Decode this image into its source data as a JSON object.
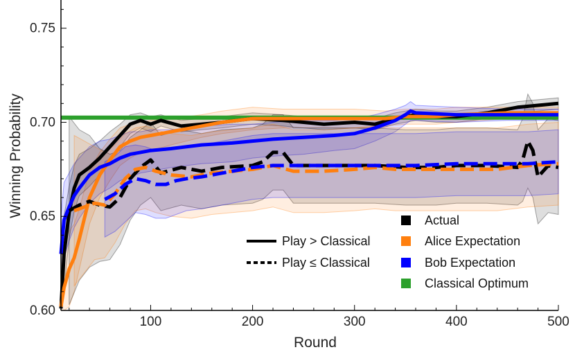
{
  "chart_data": {
    "type": "line",
    "xlabel": "Round",
    "ylabel": "Winning Probability",
    "xlim": [
      12,
      500
    ],
    "ylim": [
      0.6,
      0.765
    ],
    "xticks": [
      100,
      200,
      300,
      400,
      500
    ],
    "yticks": [
      0.6,
      0.65,
      0.7,
      0.75
    ],
    "ytick_labels": [
      "0.60",
      "0.65",
      "0.70",
      "0.75"
    ],
    "legend_placement": "bottom-right",
    "grid": false,
    "legend": {
      "markers": [
        {
          "label": "Actual",
          "color": "#000000"
        },
        {
          "label": "Alice Expectation",
          "color": "#ff7f0e"
        },
        {
          "label": "Bob Expectation",
          "color": "#0000ff"
        },
        {
          "label": "Classical Optimum",
          "color": "#2ca02c"
        }
      ],
      "linestyles": [
        {
          "label": "Play > Classical",
          "style": "solid"
        },
        {
          "label": "Play ≤ Classical",
          "style": "dotted"
        }
      ]
    },
    "series": [
      {
        "name": "Classical Optimum",
        "color": "#2ca02c",
        "style": "solid",
        "x": [
          12,
          500
        ],
        "y": [
          0.7025,
          0.7025
        ]
      },
      {
        "name": "Actual",
        "color": "#000000",
        "style": "solid",
        "x": [
          12,
          15,
          20,
          25,
          30,
          40,
          50,
          60,
          70,
          80,
          90,
          100,
          110,
          130,
          150,
          170,
          200,
          230,
          250,
          270,
          300,
          320,
          340,
          360,
          380,
          400,
          430,
          460,
          500
        ],
        "y": [
          0.601,
          0.63,
          0.652,
          0.665,
          0.672,
          0.676,
          0.681,
          0.687,
          0.693,
          0.699,
          0.701,
          0.699,
          0.701,
          0.698,
          0.699,
          0.7,
          0.702,
          0.701,
          0.7,
          0.699,
          0.7,
          0.699,
          0.702,
          0.704,
          0.703,
          0.703,
          0.705,
          0.708,
          0.71
        ],
        "band": [
          0.04,
          0.02,
          0.014,
          0.012,
          0.011,
          0.01,
          0.009,
          0.008,
          0.006,
          0.005,
          0.004,
          0.004,
          0.003,
          0.003,
          0.003,
          0.003,
          0.003,
          0.003,
          0.003,
          0.003,
          0.003,
          0.003,
          0.003,
          0.003,
          0.003,
          0.003,
          0.003,
          0.003,
          0.003
        ]
      },
      {
        "name": "Alice Expectation",
        "color": "#ff7f0e",
        "style": "solid",
        "x": [
          12,
          15,
          20,
          25,
          30,
          40,
          50,
          60,
          70,
          80,
          90,
          100,
          120,
          150,
          170,
          200,
          230,
          250,
          270,
          300,
          330,
          350,
          380,
          400,
          450,
          500
        ],
        "y": [
          0.602,
          0.612,
          0.622,
          0.628,
          0.638,
          0.66,
          0.672,
          0.68,
          0.687,
          0.69,
          0.692,
          0.693,
          0.695,
          0.698,
          0.7,
          0.702,
          0.702,
          0.702,
          0.702,
          0.702,
          0.702,
          0.703,
          0.703,
          0.704,
          0.705,
          0.705
        ],
        "band": [
          0.03,
          0.025,
          0.02,
          0.018,
          0.016,
          0.014,
          0.012,
          0.011,
          0.01,
          0.009,
          0.008,
          0.008,
          0.007,
          0.006,
          0.006,
          0.006,
          0.005,
          0.005,
          0.005,
          0.005,
          0.004,
          0.004,
          0.004,
          0.004,
          0.003,
          0.003
        ]
      },
      {
        "name": "Bob Expectation",
        "color": "#0000ff",
        "style": "solid",
        "x": [
          12,
          15,
          20,
          25,
          30,
          40,
          50,
          60,
          70,
          80,
          90,
          100,
          120,
          150,
          180,
          200,
          220,
          250,
          280,
          300,
          320,
          340,
          350,
          355,
          360,
          400,
          450,
          500
        ],
        "y": [
          0.63,
          0.648,
          0.655,
          0.661,
          0.665,
          0.672,
          0.676,
          0.678,
          0.681,
          0.683,
          0.684,
          0.685,
          0.686,
          0.688,
          0.689,
          0.69,
          0.691,
          0.692,
          0.693,
          0.694,
          0.697,
          0.701,
          0.704,
          0.706,
          0.705,
          0.704,
          0.704,
          0.704
        ],
        "band": [
          0.02,
          0.02,
          0.018,
          0.017,
          0.016,
          0.015,
          0.014,
          0.013,
          0.012,
          0.012,
          0.011,
          0.011,
          0.01,
          0.01,
          0.01,
          0.009,
          0.009,
          0.009,
          0.008,
          0.008,
          0.007,
          0.006,
          0.005,
          0.005,
          0.004,
          0.004,
          0.003,
          0.003
        ]
      },
      {
        "name": "Actual",
        "color": "#000000",
        "style": "dashed",
        "x": [
          20,
          30,
          40,
          50,
          60,
          70,
          80,
          90,
          100,
          110,
          130,
          150,
          170,
          200,
          210,
          220,
          230,
          240,
          250,
          270,
          300,
          320,
          350,
          380,
          400,
          430,
          460,
          465,
          470,
          475,
          480,
          490,
          500
        ],
        "y": [
          0.653,
          0.656,
          0.658,
          0.656,
          0.655,
          0.66,
          0.67,
          0.676,
          0.68,
          0.673,
          0.676,
          0.674,
          0.676,
          0.677,
          0.679,
          0.684,
          0.684,
          0.677,
          0.677,
          0.677,
          0.677,
          0.677,
          0.676,
          0.676,
          0.677,
          0.677,
          0.676,
          0.68,
          0.69,
          0.685,
          0.671,
          0.677,
          0.676
        ],
        "band": [
          0.05,
          0.04,
          0.035,
          0.03,
          0.028,
          0.025,
          0.022,
          0.02,
          0.02,
          0.02,
          0.02,
          0.02,
          0.02,
          0.02,
          0.02,
          0.02,
          0.02,
          0.02,
          0.02,
          0.02,
          0.02,
          0.02,
          0.02,
          0.02,
          0.02,
          0.02,
          0.02,
          0.022,
          0.025,
          0.025,
          0.025,
          0.025,
          0.025
        ]
      },
      {
        "name": "Alice Expectation",
        "color": "#ff7f0e",
        "style": "dashed",
        "x": [
          25,
          35,
          45,
          55,
          65,
          75,
          85,
          95,
          105,
          120,
          140,
          160,
          180,
          200,
          220,
          240,
          250,
          270,
          300,
          320,
          340,
          380,
          400,
          440,
          470,
          500
        ],
        "y": [
          0.653,
          0.655,
          0.657,
          0.656,
          0.662,
          0.67,
          0.675,
          0.676,
          0.674,
          0.672,
          0.671,
          0.673,
          0.674,
          0.675,
          0.677,
          0.674,
          0.674,
          0.674,
          0.675,
          0.676,
          0.675,
          0.675,
          0.675,
          0.675,
          0.677,
          0.678
        ],
        "band": [
          0.04,
          0.035,
          0.03,
          0.028,
          0.026,
          0.024,
          0.022,
          0.022,
          0.022,
          0.022,
          0.022,
          0.022,
          0.022,
          0.022,
          0.022,
          0.022,
          0.022,
          0.022,
          0.022,
          0.022,
          0.022,
          0.022,
          0.022,
          0.022,
          0.022,
          0.022
        ]
      },
      {
        "name": "Bob Expectation",
        "color": "#0000ff",
        "style": "dashed",
        "x": [
          55,
          65,
          75,
          85,
          95,
          105,
          115,
          125,
          135,
          150,
          170,
          190,
          200,
          220,
          240,
          260,
          280,
          300,
          330,
          360,
          400,
          440,
          470,
          500
        ],
        "y": [
          0.659,
          0.662,
          0.667,
          0.67,
          0.669,
          0.667,
          0.667,
          0.669,
          0.67,
          0.671,
          0.673,
          0.675,
          0.676,
          0.677,
          0.677,
          0.677,
          0.677,
          0.677,
          0.677,
          0.677,
          0.678,
          0.678,
          0.678,
          0.679
        ],
        "band": [
          0.02,
          0.02,
          0.02,
          0.018,
          0.018,
          0.018,
          0.018,
          0.018,
          0.017,
          0.017,
          0.017,
          0.017,
          0.017,
          0.017,
          0.017,
          0.017,
          0.017,
          0.017,
          0.017,
          0.017,
          0.017,
          0.017,
          0.017,
          0.017
        ]
      }
    ]
  }
}
